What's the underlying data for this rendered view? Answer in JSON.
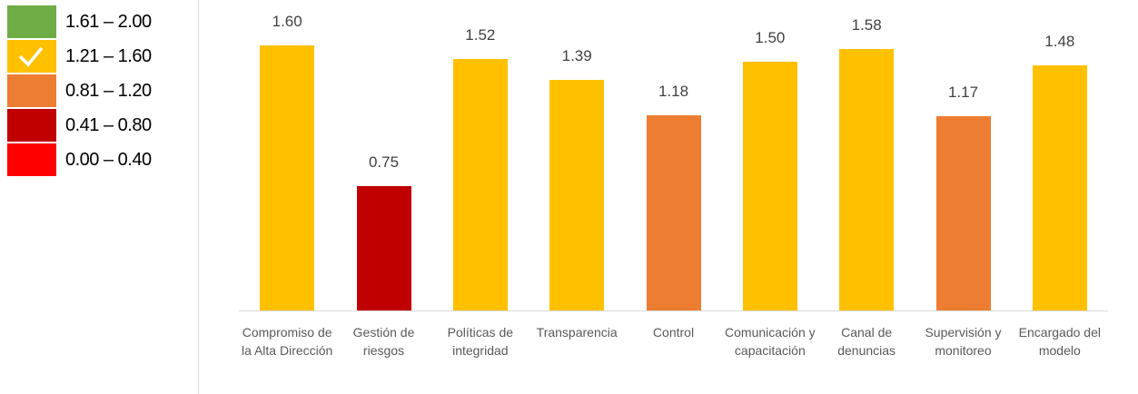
{
  "chart_data": {
    "type": "bar",
    "legend": [
      {
        "label": "1.61 – 2.00",
        "color": "#70ad47"
      },
      {
        "label": "1.21 – 1.60",
        "color": "#ffc000"
      },
      {
        "label": "0.81 – 1.20",
        "color": "#ed7d31"
      },
      {
        "label": "0.41 – 0.80",
        "color": "#c00000"
      },
      {
        "label": "0.00 – 0.40",
        "color": "#ff0000"
      }
    ],
    "categories": [
      "Compromiso de la Alta Dirección",
      "Gestión de riesgos",
      "Políticas de integridad",
      "Transparencia",
      "Control",
      "Comunicación y capacitación",
      "Canal de denuncias",
      "Supervisión y monitoreo",
      "Encargado del modelo"
    ],
    "values": [
      1.6,
      0.75,
      1.52,
      1.39,
      1.18,
      1.5,
      1.58,
      1.17,
      1.48
    ],
    "value_labels": [
      "1.60",
      "0.75",
      "1.52",
      "1.39",
      "1.18",
      "1.50",
      "1.58",
      "1.17",
      "1.48"
    ],
    "colors": [
      "#ffc000",
      "#c00000",
      "#ffc000",
      "#ffc000",
      "#ed7d31",
      "#ffc000",
      "#ffc000",
      "#ed7d31",
      "#ffc000"
    ],
    "ylim": [
      0,
      1.6
    ]
  }
}
